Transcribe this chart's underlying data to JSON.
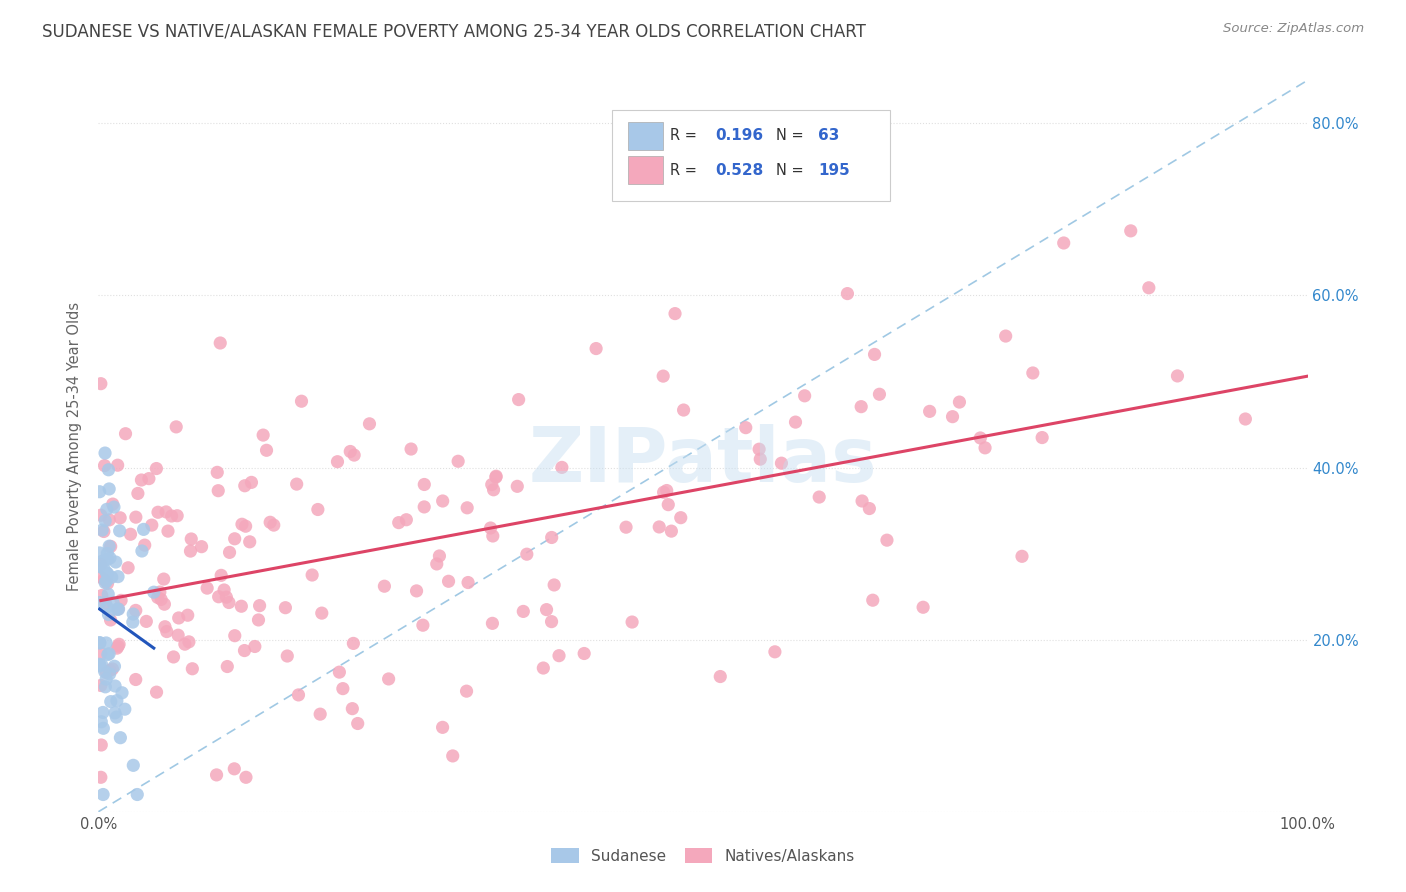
{
  "title": "SUDANESE VS NATIVE/ALASKAN FEMALE POVERTY AMONG 25-34 YEAR OLDS CORRELATION CHART",
  "source": "Source: ZipAtlas.com",
  "ylabel": "Female Poverty Among 25-34 Year Olds",
  "xlim": [
    0,
    1.0
  ],
  "ylim": [
    0,
    0.85
  ],
  "sudanese_R": 0.196,
  "sudanese_N": 63,
  "native_R": 0.528,
  "native_N": 195,
  "sudanese_color": "#a8c8e8",
  "native_color": "#f4a8bc",
  "sudanese_line_color": "#2255bb",
  "native_line_color": "#dd4466",
  "dashed_line_color": "#88bbdd",
  "watermark": "ZIPatlas",
  "background_color": "#ffffff",
  "grid_color": "#e0e0e0",
  "title_color": "#444444",
  "right_axis_tick_color": "#3388cc",
  "legend_R_color": "#3366cc",
  "legend_N_color": "#3366cc"
}
